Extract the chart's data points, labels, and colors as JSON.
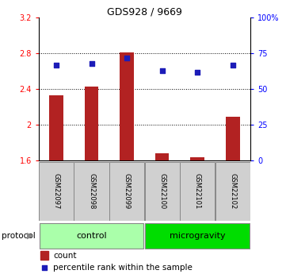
{
  "title": "GDS928 / 9669",
  "categories": [
    "GSM22097",
    "GSM22098",
    "GSM22099",
    "GSM22100",
    "GSM22101",
    "GSM22102"
  ],
  "count_values": [
    2.33,
    2.43,
    2.81,
    1.68,
    1.63,
    2.09
  ],
  "percentile_values": [
    67,
    68,
    72,
    63,
    62,
    67
  ],
  "ylim_left": [
    1.6,
    3.2
  ],
  "ylim_right": [
    0,
    100
  ],
  "yticks_left": [
    1.6,
    2.0,
    2.4,
    2.8,
    3.2
  ],
  "yticks_right": [
    0,
    25,
    50,
    75,
    100
  ],
  "ytick_labels_right": [
    "0",
    "25",
    "50",
    "75",
    "100%"
  ],
  "bar_color": "#B22222",
  "dot_color": "#1C1CB8",
  "bg_color": "#FFFFFF",
  "protocol_groups": [
    {
      "label": "control",
      "indices": [
        0,
        1,
        2
      ],
      "color": "#AAFFAA"
    },
    {
      "label": "microgravity",
      "indices": [
        3,
        4,
        5
      ],
      "color": "#00DD00"
    }
  ],
  "protocol_label": "protocol",
  "legend_count_label": "count",
  "legend_percentile_label": "percentile rank within the sample",
  "bar_width": 0.4,
  "title_fontsize": 9,
  "tick_fontsize": 7,
  "label_fontsize": 7.5,
  "proto_fontsize": 8
}
